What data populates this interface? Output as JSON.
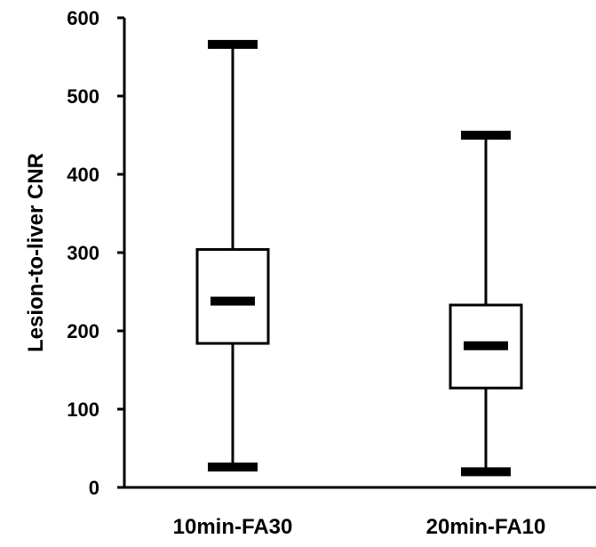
{
  "chart_data": {
    "type": "box",
    "title": "",
    "xlabel": "",
    "ylabel": "Lesion-to-liver CNR",
    "ylim": [
      0,
      600
    ],
    "yticks": [
      0,
      100,
      200,
      300,
      400,
      500,
      600
    ],
    "ytick_labels": [
      "0",
      "100",
      "200",
      "300",
      "400",
      "500",
      "600"
    ],
    "grid": false,
    "legend": "none",
    "categories": [
      "10min-FA30",
      "20min-FA10"
    ],
    "boxes": [
      {
        "category": "10min-FA30",
        "min": 26,
        "q1": 184,
        "median": 238,
        "q3": 304,
        "max": 566
      },
      {
        "category": "20min-FA10",
        "min": 20,
        "q1": 127,
        "median": 181,
        "q3": 233,
        "max": 450
      }
    ],
    "colors": {
      "stroke": "#000000",
      "box_fill": "#ffffff",
      "background": "#ffffff"
    }
  }
}
